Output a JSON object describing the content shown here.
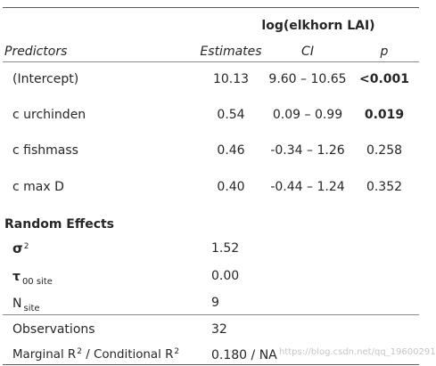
{
  "header": {
    "dependent_variable": "log(elkhorn LAI)",
    "columns": {
      "predictors": "Predictors",
      "estimates": "Estimates",
      "ci": "CI",
      "p": "p"
    }
  },
  "rows": [
    {
      "predictor": "(Intercept)",
      "estimate": "10.13",
      "ci": "9.60 – 10.65",
      "p": "<0.001",
      "p_bold": true
    },
    {
      "predictor": "c urchinden",
      "estimate": "0.54",
      "ci": "0.09 – 0.99",
      "p": "0.019",
      "p_bold": true
    },
    {
      "predictor": "c fishmass",
      "estimate": "0.46",
      "ci": "-0.34 – 1.26",
      "p": "0.258",
      "p_bold": false
    },
    {
      "predictor": "c max D",
      "estimate": "0.40",
      "ci": "-0.44 – 1.24",
      "p": "0.352",
      "p_bold": false
    }
  ],
  "random_effects": {
    "heading": "Random Effects",
    "sigma2": {
      "symbol": "σ",
      "sup": "2",
      "value": "1.52"
    },
    "tau00": {
      "symbol": "τ",
      "sub": "00 site",
      "value": "0.00"
    },
    "n_site": {
      "symbol": "N",
      "sub": "site",
      "value": "9"
    }
  },
  "footer": {
    "observations_label": "Observations",
    "observations_value": "32",
    "r2_label_a": "Marginal R",
    "r2_label_b": " / Conditional R",
    "r2_sup": "2",
    "r2_value": "0.180 / NA"
  },
  "watermark": "https://blog.csdn.net/qq_19600291",
  "colors": {
    "text": "#262626",
    "rule": "#5a5a5a",
    "watermark": "#c6c6c6"
  }
}
